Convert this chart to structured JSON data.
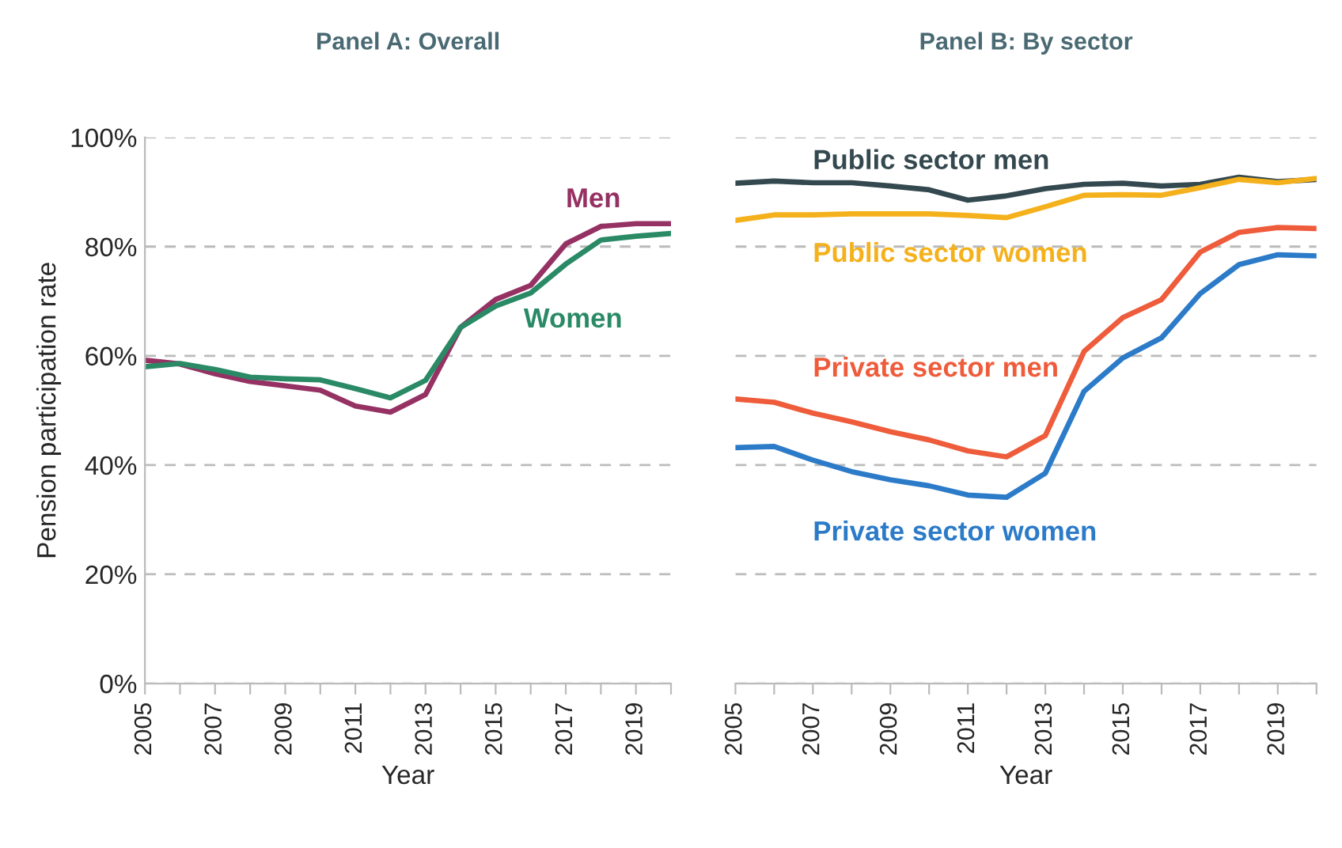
{
  "chart_data": [
    {
      "type": "line",
      "title": "Panel A: Overall",
      "xlabel": "Year",
      "ylabel": "Pension participation rate",
      "x": [
        2005,
        2006,
        2007,
        2008,
        2009,
        2010,
        2011,
        2012,
        2013,
        2014,
        2015,
        2016,
        2017,
        2018,
        2019,
        2020
      ],
      "series": [
        {
          "name": "Men",
          "color": "#953163",
          "values": [
            59.2,
            58.5,
            56.7,
            55.3,
            54.5,
            53.7,
            50.8,
            49.7,
            52.9,
            65.2,
            70.3,
            72.9,
            80.5,
            83.7,
            84.2,
            84.2
          ]
        },
        {
          "name": "Women",
          "color": "#2a8a66",
          "values": [
            58.0,
            58.6,
            57.5,
            56.1,
            55.8,
            55.6,
            54.0,
            52.3,
            55.5,
            65.2,
            69.1,
            71.5,
            76.8,
            81.2,
            81.9,
            82.4
          ]
        }
      ],
      "xlim": [
        2005,
        2020
      ],
      "xticks": [
        2005,
        {
          "value": 2006,
          "label": null
        },
        2007,
        {
          "value": 2008,
          "label": null
        },
        2009,
        {
          "value": 2010,
          "label": null
        },
        2011,
        {
          "value": 2012,
          "label": null
        },
        2013,
        {
          "value": 2014,
          "label": null
        },
        2015,
        {
          "value": 2016,
          "label": null
        },
        2017,
        {
          "value": 2018,
          "label": null
        },
        2019,
        {
          "value": 2020,
          "label": null
        }
      ],
      "ylim": [
        0,
        100
      ],
      "yticks": [
        {
          "value": 0,
          "label": "0%"
        },
        {
          "value": 20,
          "label": "20%"
        },
        {
          "value": 40,
          "label": "40%"
        },
        {
          "value": 60,
          "label": "60%"
        },
        {
          "value": 80,
          "label": "80%"
        },
        {
          "value": 100,
          "label": "100%"
        }
      ],
      "grid": "y",
      "line_style": "solid",
      "marker": "none"
    },
    {
      "type": "line",
      "title": "Panel B: By sector",
      "xlabel": "Year",
      "x": [
        2005,
        2006,
        2007,
        2008,
        2009,
        2010,
        2011,
        2012,
        2013,
        2014,
        2015,
        2016,
        2017,
        2018,
        2019,
        2020
      ],
      "series": [
        {
          "name": "Public sector men",
          "color": "#34494f",
          "values": [
            91.6,
            92.0,
            91.7,
            91.7,
            91.1,
            90.4,
            88.5,
            89.3,
            90.6,
            91.4,
            91.6,
            91.1,
            91.4,
            92.7,
            91.9,
            92.3
          ]
        },
        {
          "name": "Public sector women",
          "color": "#f4b11c",
          "values": [
            84.8,
            85.8,
            85.8,
            86.0,
            86.0,
            86.0,
            85.7,
            85.3,
            87.3,
            89.4,
            89.5,
            89.4,
            90.8,
            92.3,
            91.7,
            92.5
          ]
        },
        {
          "name": "Private sector men",
          "color": "#ee5c3b",
          "values": [
            52.1,
            51.5,
            49.5,
            47.9,
            46.1,
            44.6,
            42.6,
            41.5,
            45.4,
            60.8,
            67.0,
            70.3,
            79.0,
            82.6,
            83.5,
            83.3
          ]
        },
        {
          "name": "Private sector women",
          "color": "#2c7bc9",
          "values": [
            43.2,
            43.4,
            40.9,
            38.8,
            37.3,
            36.2,
            34.5,
            34.1,
            38.5,
            53.5,
            59.6,
            63.3,
            71.4,
            76.7,
            78.5,
            78.3
          ]
        }
      ],
      "xlim": [
        2005,
        2020
      ],
      "xticks": [
        2005,
        {
          "value": 2006,
          "label": null
        },
        2007,
        {
          "value": 2008,
          "label": null
        },
        2009,
        {
          "value": 2010,
          "label": null
        },
        2011,
        {
          "value": 2012,
          "label": null
        },
        2013,
        {
          "value": 2014,
          "label": null
        },
        2015,
        {
          "value": 2016,
          "label": null
        },
        2017,
        {
          "value": 2018,
          "label": null
        },
        2019,
        {
          "value": 2020,
          "label": null
        }
      ],
      "ylim": [
        0,
        100
      ],
      "yticks": [
        0,
        20,
        40,
        60,
        80,
        100
      ],
      "tick_labels": "x",
      "grid": "y",
      "line_style": "solid",
      "marker": "none"
    }
  ]
}
